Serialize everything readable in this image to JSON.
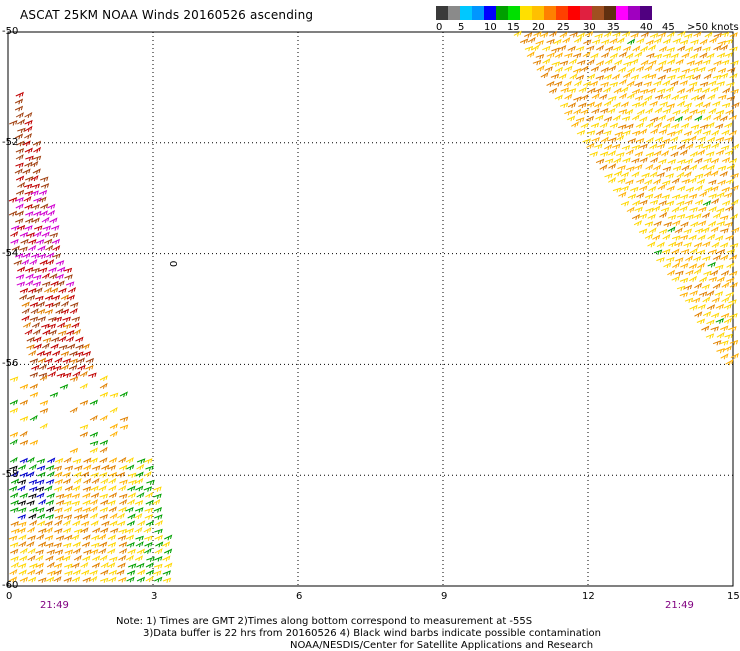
{
  "title": "ASCAT 25KM NOAA Winds 20160526 ascending",
  "scale": {
    "labels": [
      "0",
      "5",
      "10",
      "15",
      "20",
      "25",
      "30",
      "35",
      "40",
      "45",
      ">50 knots"
    ],
    "colors": [
      "#3a3a3a",
      "#8a8a8a",
      "#00c8ff",
      "#0096ff",
      "#0000ff",
      "#00a000",
      "#00e000",
      "#ffe000",
      "#ffc000",
      "#ff8000",
      "#ff4000",
      "#ff0000",
      "#e02040",
      "#a05020",
      "#603010",
      "#ff00ff",
      "#a000c0",
      "#500080"
    ]
  },
  "axes": {
    "lat_labels": [
      "-50",
      "-52",
      "-54",
      "-56",
      "-58",
      "-60"
    ],
    "lon_labels": [
      "0",
      "3",
      "6",
      "9",
      "12",
      "15"
    ],
    "lat_range": [
      -60,
      -50
    ],
    "lon_range": [
      0,
      15
    ]
  },
  "times": {
    "left": "21:49",
    "right": "21:49"
  },
  "marker": "0",
  "wind_colors": {
    "yellow": "#ffd700",
    "gold": "#ffb000",
    "orange": "#e08000",
    "brown": "#a04010",
    "red": "#c00000",
    "magenta": "#d000d0",
    "green": "#00a000",
    "blue": "#0000d0",
    "black": "#000000"
  },
  "notes": {
    "line1": "Note: 1) Times are GMT 2)Times along bottom correspond to measurement at -55S",
    "line2": "3)Data buffer is 22 hrs from 20160526 4) Black wind barbs indicate possible contamination",
    "line3": "NOAA/NESDIS/Center for Satellite Applications and Research"
  }
}
